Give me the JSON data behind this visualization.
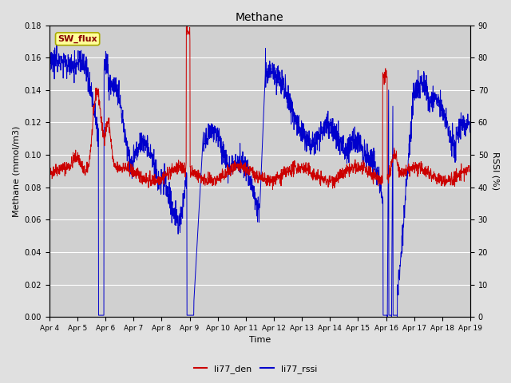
{
  "title": "Methane",
  "ylabel_left": "Methane (mmol/m3)",
  "ylabel_right": "RSSI (%)",
  "xlabel": "Time",
  "ylim_left": [
    0.0,
    0.18
  ],
  "ylim_right": [
    0,
    90
  ],
  "yticks_left": [
    0.0,
    0.02,
    0.04,
    0.06,
    0.08,
    0.1,
    0.12,
    0.14,
    0.16,
    0.18
  ],
  "yticks_right": [
    0,
    10,
    20,
    30,
    40,
    50,
    60,
    70,
    80,
    90
  ],
  "xtick_labels": [
    "Apr 4",
    "Apr 5",
    "Apr 6",
    "Apr 7",
    "Apr 8",
    "Apr 9",
    "Apr 10",
    "Apr 11",
    "Apr 12",
    "Apr 13",
    "Apr 14",
    "Apr 15",
    "Apr 16",
    "Apr 17",
    "Apr 18",
    "Apr 19"
  ],
  "legend_labels": [
    "li77_den",
    "li77_rssi"
  ],
  "color_den": "#cc0000",
  "color_rssi": "#0000cc",
  "fig_bg": "#e0e0e0",
  "plot_bg": "#d0d0d0",
  "annotation_text": "SW_flux",
  "annotation_bg": "#ffff99",
  "annotation_border": "#aaaa00",
  "annotation_color": "#880000",
  "grid_color": "#ffffff"
}
